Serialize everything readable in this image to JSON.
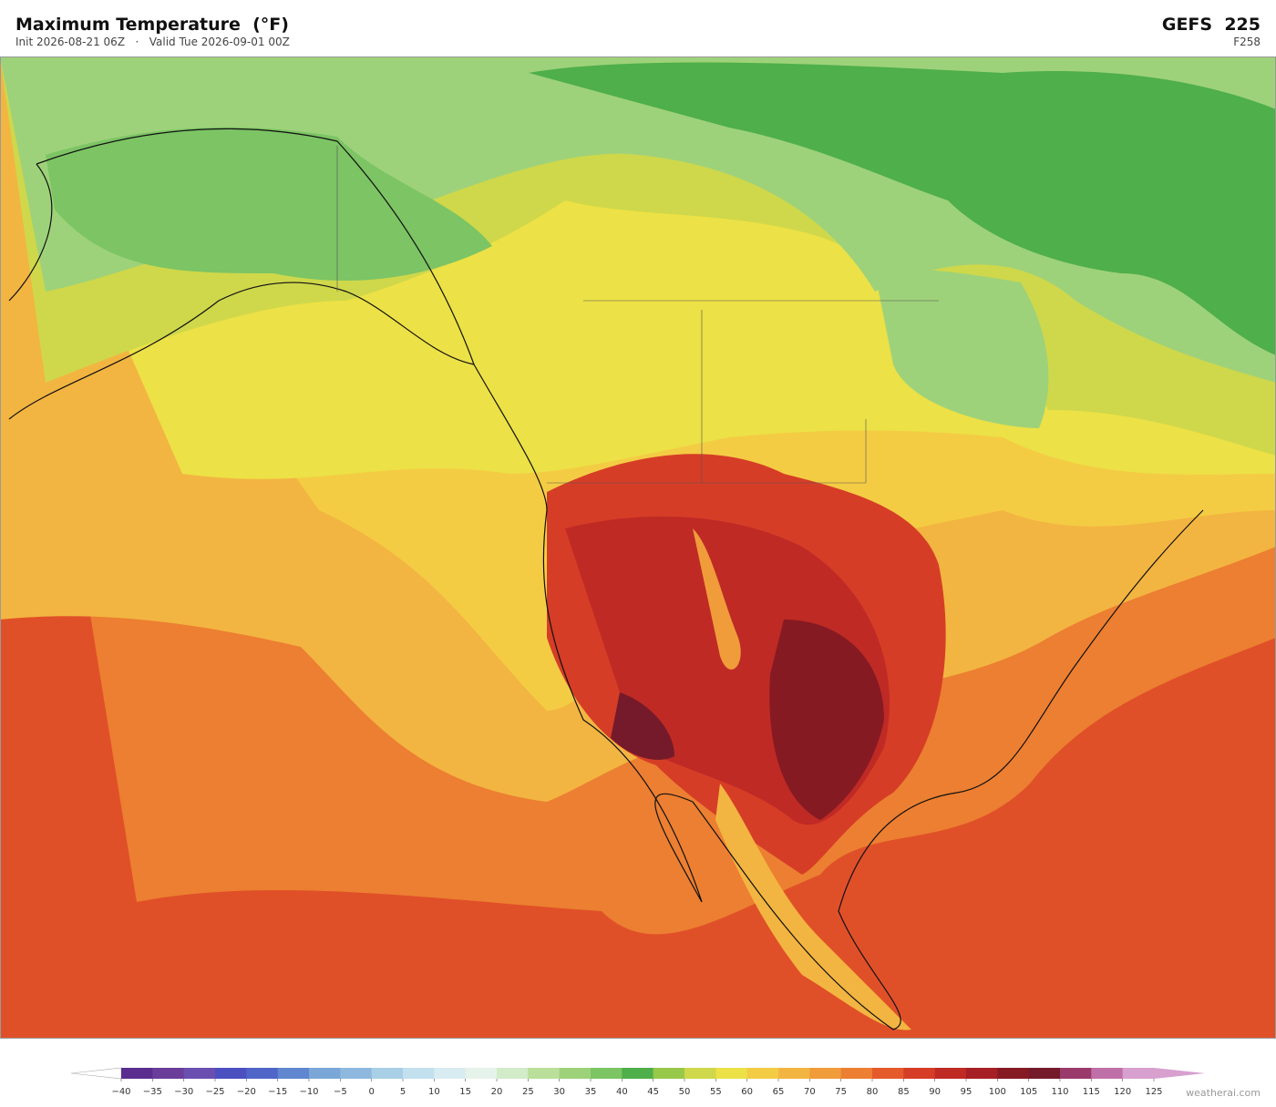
{
  "header": {
    "title": "Maximum Temperature  (°F)",
    "subtitle": "Init 2026-08-21 06Z   ·   Valid Tue 2026-09-01 00Z",
    "model": "GEFS  225",
    "forecast_hour": "F258"
  },
  "colorbar": {
    "ticks": [
      "−40",
      "−35",
      "−30",
      "−25",
      "−20",
      "−15",
      "−10",
      "−5",
      "0",
      "5",
      "10",
      "15",
      "20",
      "25",
      "30",
      "35",
      "40",
      "45",
      "50",
      "55",
      "60",
      "65",
      "70",
      "75",
      "80",
      "85",
      "90",
      "95",
      "100",
      "105",
      "110",
      "115",
      "120",
      "125"
    ],
    "colors": [
      "#5a2d8f",
      "#6a3d9a",
      "#6b4fb0",
      "#4b4fc0",
      "#4f65c8",
      "#5f86cf",
      "#7aa6d8",
      "#8fb8de",
      "#a8cfe6",
      "#c2e0ee",
      "#d8ecf2",
      "#e6f3ea",
      "#d2ebc8",
      "#b9df9a",
      "#9ed27a",
      "#7cc464",
      "#4faf4a",
      "#98c84a",
      "#cfd84a",
      "#ece146",
      "#f4cc44",
      "#f3b541",
      "#f09c3a",
      "#ec7f31",
      "#e55a2b",
      "#d63d26",
      "#bf2a25",
      "#a61f24",
      "#861a22",
      "#741a2a",
      "#9a3a6a",
      "#c070a8",
      "#d7a0cf"
    ],
    "under_color": "#ffffff",
    "over_color": "#d7a0cf"
  },
  "watermark": "weatherai.com"
}
